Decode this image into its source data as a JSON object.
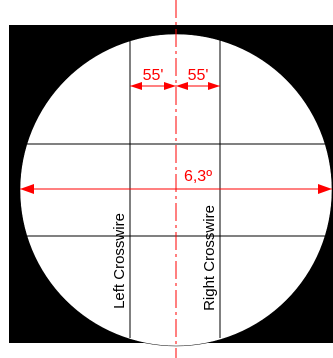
{
  "diagram": {
    "labels": {
      "left_spacing": "55'",
      "right_spacing": "55'",
      "field_of_view": "6,3º",
      "left_crosswire": "Left Crosswire",
      "right_crosswire": "Right Crosswire"
    },
    "colors": {
      "background": "#ffffff",
      "mask": "#000000",
      "field": "#ffffff",
      "reticle_lines": "#000000",
      "dimension": "#ff0000"
    }
  }
}
